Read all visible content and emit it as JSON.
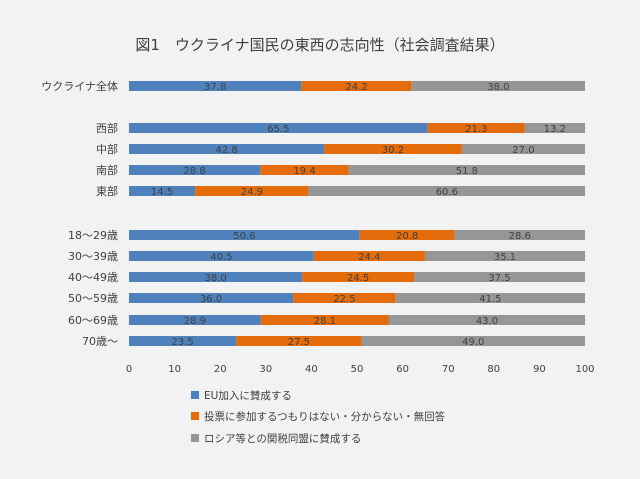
{
  "chart_data": {
    "type": "bar",
    "stacked": true,
    "orientation": "horizontal",
    "title": "図1　ウクライナ国民の東西の志向性（社会調査結果）",
    "xlim": [
      0,
      100
    ],
    "x_ticks": [
      0,
      10,
      20,
      30,
      40,
      50,
      60,
      70,
      80,
      90,
      100
    ],
    "grid": false,
    "legend_position": "bottom-left",
    "groups": [
      {
        "categories": [
          "ウクライナ全体"
        ]
      },
      {
        "categories": [
          "西部",
          "中部",
          "南部",
          "東部"
        ]
      },
      {
        "categories": [
          "18～29歳",
          "30～39歳",
          "40～49歳",
          "50～59歳",
          "60～69歳",
          "70歳～"
        ]
      }
    ],
    "categories": [
      "ウクライナ全体",
      "西部",
      "中部",
      "南部",
      "東部",
      "18～29歳",
      "30～39歳",
      "40～49歳",
      "50～59歳",
      "60～69歳",
      "70歳～"
    ],
    "series": [
      {
        "name": "EU加入に賛成する",
        "color": "#4f81bd",
        "values": [
          37.8,
          65.5,
          42.8,
          28.8,
          14.5,
          50.6,
          40.5,
          38.0,
          36.0,
          28.9,
          23.5
        ]
      },
      {
        "name": "投票に参加するつもりはない・分からない・無回答",
        "color": "#e46c0a",
        "values": [
          24.2,
          21.3,
          30.2,
          19.4,
          24.9,
          20.8,
          24.4,
          24.5,
          22.5,
          28.1,
          27.5
        ]
      },
      {
        "name": "ロシア等との関税同盟に賛成する",
        "color": "#969696",
        "values": [
          38.0,
          13.2,
          27.0,
          51.8,
          60.6,
          28.6,
          35.1,
          37.5,
          41.5,
          43.0,
          49.0
        ]
      }
    ],
    "data_labels": [
      [
        "37.8",
        "65.5",
        "42.8",
        "28.8",
        "14.5",
        "50.6",
        "40.5",
        "38.0",
        "36.0",
        "28.9",
        "23.5"
      ],
      [
        "24.2",
        "21.3",
        "30.2",
        "19.4",
        "24.9",
        "20.8",
        "24.4",
        "24.5",
        "22.5",
        "28.1",
        "27.5"
      ],
      [
        "38.0",
        "13.2",
        "27.0",
        "51.8",
        "60.6",
        "28.6",
        "35.1",
        "37.5",
        "41.5",
        "43.0",
        "49.0"
      ]
    ]
  }
}
